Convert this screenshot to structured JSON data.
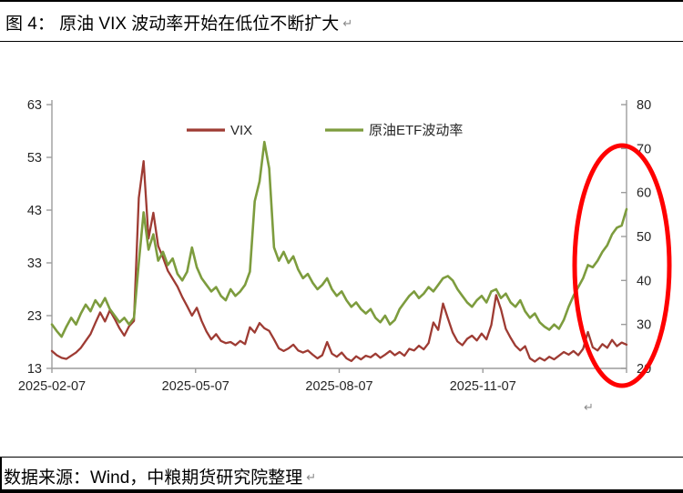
{
  "document": {
    "title": "图 4：  原油 VIX 波动率开始在低位不断扩大",
    "source": "数据来源：Wind，中粮期货研究院整理",
    "pilcrow": "↵"
  },
  "colors": {
    "vix_line": "#9E3B33",
    "oil_etf_line": "#7D9C3E",
    "highlight": "#FF0000",
    "axis": "#9C9C9C",
    "axis_label": "#262626",
    "border": "#000000"
  },
  "chart_data": {
    "type": "line",
    "title": "",
    "xlabel": "",
    "ylabel": "",
    "grid": false,
    "legend_position": "top-center",
    "x_axis": {
      "labels": [
        "2025-02-07",
        "2025-05-07",
        "2025-08-07",
        "2025-11-07"
      ],
      "tick_count": 5
    },
    "left_axis": {
      "min": 13,
      "max": 63,
      "ticks": [
        63,
        53,
        43,
        33,
        23,
        13
      ]
    },
    "right_axis": {
      "min": 20,
      "max": 80,
      "ticks": [
        80,
        70,
        60,
        50,
        40,
        30,
        20
      ]
    },
    "series": [
      {
        "name": "VIX",
        "axis": "left",
        "color": "#9E3B33",
        "values": [
          16.3,
          15.5,
          15.0,
          14.8,
          15.4,
          16.0,
          16.9,
          18.2,
          19.5,
          21.6,
          23.6,
          21.9,
          24.0,
          22.4,
          20.6,
          19.2,
          21.0,
          22.0,
          45.3,
          52.3,
          37.6,
          42.5,
          36.2,
          34.0,
          31.5,
          30.0,
          28.5,
          26.5,
          24.8,
          23.0,
          24.5,
          22.0,
          20.0,
          18.5,
          19.5,
          18.2,
          17.8,
          18.0,
          17.4,
          18.2,
          17.6,
          20.8,
          19.8,
          21.6,
          20.6,
          20.1,
          18.5,
          16.8,
          16.3,
          16.8,
          17.5,
          16.4,
          16.0,
          16.4,
          15.6,
          14.9,
          15.5,
          18.0,
          15.8,
          15.2,
          16.0,
          14.9,
          14.4,
          15.3,
          14.7,
          15.4,
          15.1,
          15.8,
          15.0,
          15.6,
          16.3,
          15.5,
          16.1,
          15.4,
          16.7,
          16.4,
          17.3,
          16.6,
          17.8,
          21.7,
          20.3,
          25.3,
          22.5,
          19.8,
          18.1,
          17.4,
          18.6,
          19.2,
          18.3,
          19.6,
          18.5,
          21.2,
          26.9,
          24.2,
          20.5,
          18.8,
          17.3,
          16.4,
          17.2,
          14.9,
          14.3,
          15.0,
          14.5,
          15.2,
          14.7,
          15.4,
          16.1,
          15.6,
          16.3,
          15.5,
          16.7,
          19.9,
          17.0,
          16.4,
          17.6,
          16.9,
          18.4,
          17.2,
          17.9,
          17.5
        ]
      },
      {
        "name": "原油ETF波动率",
        "axis": "right",
        "color": "#7D9C3E",
        "values": [
          30.0,
          28.5,
          27.2,
          29.5,
          31.5,
          30.0,
          32.5,
          34.5,
          33.0,
          35.5,
          34.0,
          36.0,
          33.5,
          32.0,
          30.5,
          31.5,
          30.0,
          31.5,
          44.0,
          55.5,
          47.0,
          50.5,
          44.5,
          46.5,
          43.5,
          45.0,
          41.5,
          40.0,
          42.0,
          47.5,
          43.0,
          40.5,
          39.0,
          37.5,
          38.5,
          36.5,
          35.5,
          38.0,
          36.5,
          37.5,
          39.0,
          42.0,
          58.0,
          62.5,
          71.5,
          65.5,
          47.5,
          44.5,
          46.5,
          44.0,
          45.5,
          42.5,
          40.5,
          41.5,
          39.5,
          38.0,
          39.0,
          40.5,
          38.0,
          36.5,
          37.5,
          35.5,
          34.0,
          35.0,
          33.5,
          32.5,
          33.5,
          31.5,
          30.5,
          32.0,
          30.0,
          31.0,
          33.5,
          35.0,
          36.5,
          37.5,
          36.0,
          37.0,
          38.5,
          37.5,
          39.0,
          40.5,
          41.0,
          40.0,
          38.0,
          36.5,
          35.0,
          34.0,
          35.5,
          36.5,
          35.0,
          37.5,
          38.0,
          36.0,
          37.0,
          35.0,
          34.0,
          35.5,
          33.0,
          31.5,
          32.5,
          30.5,
          29.5,
          28.8,
          30.0,
          29.0,
          31.0,
          34.0,
          36.5,
          38.5,
          40.5,
          43.5,
          43.0,
          44.5,
          46.5,
          48.0,
          50.5,
          52.0,
          52.5,
          56.2
        ]
      }
    ],
    "annotation": {
      "shape": "ellipse",
      "color": "#FF0000",
      "stroke_width": 5,
      "region": "right-end-of-chart"
    }
  }
}
